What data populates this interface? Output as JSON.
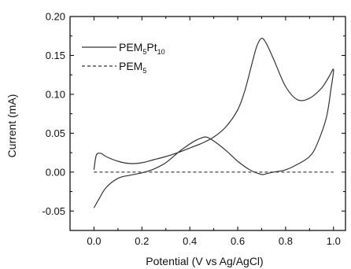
{
  "chart_data": {
    "type": "line",
    "title": "",
    "xlabel": "Potential (V vs Ag/AgCl)",
    "ylabel": "Current (mA)",
    "xlim": [
      -0.1,
      1.05
    ],
    "ylim": [
      -0.075,
      0.2
    ],
    "x_ticks": [
      "0.0",
      "0.2",
      "0.4",
      "0.6",
      "0.8",
      "1.0"
    ],
    "y_ticks": [
      "-0.05",
      "0.00",
      "0.05",
      "0.10",
      "0.15",
      "0.20"
    ],
    "grid": false,
    "legend_position": "top-left",
    "series": [
      {
        "name": "PEM5Pt10",
        "legend_parts": {
          "main": "PEM",
          "sub1": "5",
          "mid": "Pt",
          "sub2": "10"
        },
        "style": "solid",
        "x": [
          0.0,
          0.01,
          0.03,
          0.05,
          0.1,
          0.15,
          0.2,
          0.25,
          0.3,
          0.35,
          0.4,
          0.45,
          0.5,
          0.55,
          0.6,
          0.63,
          0.66,
          0.68,
          0.7,
          0.72,
          0.75,
          0.8,
          0.85,
          0.9,
          0.95,
          0.98,
          1.0,
          0.99,
          0.97,
          0.93,
          0.9,
          0.85,
          0.8,
          0.75,
          0.72,
          0.7,
          0.65,
          0.6,
          0.55,
          0.5,
          0.47,
          0.45,
          0.42,
          0.38,
          0.35,
          0.3,
          0.25,
          0.2,
          0.15,
          0.1,
          0.05,
          0.02,
          0.0
        ],
        "y": [
          0.003,
          0.022,
          0.024,
          0.02,
          0.014,
          0.011,
          0.012,
          0.016,
          0.02,
          0.025,
          0.031,
          0.037,
          0.045,
          0.058,
          0.08,
          0.105,
          0.14,
          0.162,
          0.172,
          0.165,
          0.145,
          0.11,
          0.093,
          0.095,
          0.108,
          0.122,
          0.132,
          0.108,
          0.07,
          0.035,
          0.02,
          0.01,
          0.003,
          0.0,
          -0.002,
          -0.003,
          0.003,
          0.014,
          0.028,
          0.04,
          0.045,
          0.044,
          0.04,
          0.032,
          0.025,
          0.012,
          0.004,
          -0.001,
          -0.004,
          -0.008,
          -0.02,
          -0.035,
          -0.046
        ]
      },
      {
        "name": "PEM5",
        "legend_parts": {
          "main": "PEM",
          "sub1": "5"
        },
        "style": "dashed",
        "x": [
          0.0,
          1.0
        ],
        "y": [
          0.0,
          0.0
        ]
      }
    ]
  }
}
